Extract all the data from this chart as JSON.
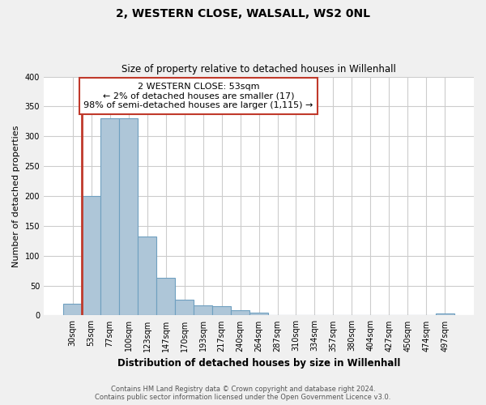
{
  "title": "2, WESTERN CLOSE, WALSALL, WS2 0NL",
  "subtitle": "Size of property relative to detached houses in Willenhall",
  "xlabel": "Distribution of detached houses by size in Willenhall",
  "ylabel": "Number of detached properties",
  "bar_labels": [
    "30sqm",
    "53sqm",
    "77sqm",
    "100sqm",
    "123sqm",
    "147sqm",
    "170sqm",
    "193sqm",
    "217sqm",
    "240sqm",
    "264sqm",
    "287sqm",
    "310sqm",
    "334sqm",
    "357sqm",
    "380sqm",
    "404sqm",
    "427sqm",
    "450sqm",
    "474sqm",
    "497sqm"
  ],
  "bar_heights": [
    20,
    200,
    330,
    330,
    132,
    63,
    27,
    17,
    16,
    9,
    4,
    1,
    0,
    0,
    0,
    0,
    0,
    0,
    0,
    1,
    3
  ],
  "highlight_bar_index": 1,
  "highlight_color": "#c0392b",
  "normal_color": "#aec6d8",
  "normal_edge_color": "#6fa0c0",
  "ylim": [
    0,
    400
  ],
  "yticks": [
    0,
    50,
    100,
    150,
    200,
    250,
    300,
    350,
    400
  ],
  "annotation_title": "2 WESTERN CLOSE: 53sqm",
  "annotation_line1": "← 2% of detached houses are smaller (17)",
  "annotation_line2": "98% of semi-detached houses are larger (1,115) →",
  "footnote1": "Contains HM Land Registry data © Crown copyright and database right 2024.",
  "footnote2": "Contains public sector information licensed under the Open Government Licence v3.0.",
  "bg_color": "#f0f0f0",
  "plot_bg_color": "#ffffff",
  "grid_color": "#cccccc"
}
